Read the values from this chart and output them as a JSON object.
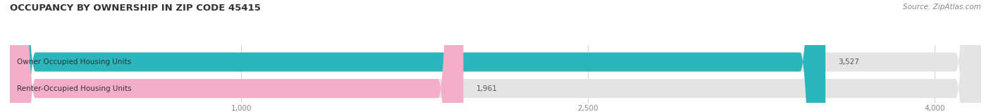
{
  "title": "OCCUPANCY BY OWNERSHIP IN ZIP CODE 45415",
  "source": "Source: ZipAtlas.com",
  "categories": [
    "Owner Occupied Housing Units",
    "Renter-Occupied Housing Units"
  ],
  "values": [
    3527,
    1961
  ],
  "bar_colors": [
    "#2bb5bc",
    "#f5aec8"
  ],
  "bar_bg_color": "#e4e4e4",
  "title_color": "#333333",
  "source_color": "#888888",
  "label_color": "#333333",
  "value_color": "#555555",
  "xlim_max": 4200,
  "xticks": [
    1000,
    2500,
    4000
  ],
  "figsize": [
    14.06,
    1.59
  ],
  "dpi": 100
}
